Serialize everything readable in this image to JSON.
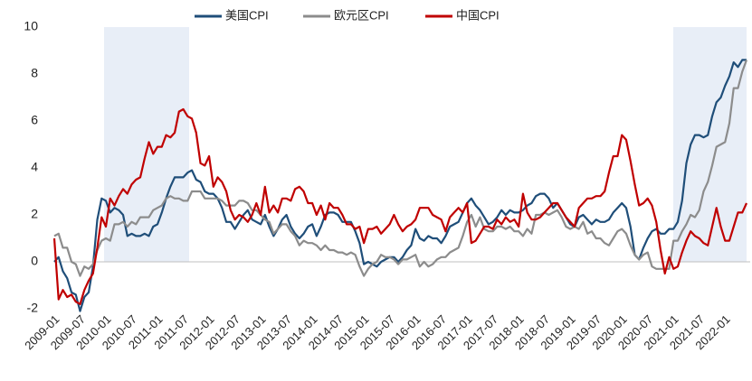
{
  "chart_data": {
    "type": "line",
    "categories": [
      "2009-01",
      null,
      null,
      null,
      null,
      null,
      "2009-07",
      null,
      null,
      null,
      null,
      null,
      "2010-01",
      null,
      null,
      null,
      null,
      null,
      "2010-07",
      null,
      null,
      null,
      null,
      null,
      "2011-01",
      null,
      null,
      null,
      null,
      null,
      "2011-07",
      null,
      null,
      null,
      null,
      null,
      "2012-01",
      null,
      null,
      null,
      null,
      null,
      "2012-07",
      null,
      null,
      null,
      null,
      null,
      "2013-01",
      null,
      null,
      null,
      null,
      null,
      "2013-07",
      null,
      null,
      null,
      null,
      null,
      "2014-01",
      null,
      null,
      null,
      null,
      null,
      "2014-07",
      null,
      null,
      null,
      null,
      null,
      "2015-01",
      null,
      null,
      null,
      null,
      null,
      "2015-07",
      null,
      null,
      null,
      null,
      null,
      "2016-01",
      null,
      null,
      null,
      null,
      null,
      "2016-07",
      null,
      null,
      null,
      null,
      null,
      "2017-01",
      null,
      null,
      null,
      null,
      null,
      "2017-07",
      null,
      null,
      null,
      null,
      null,
      "2018-01",
      null,
      null,
      null,
      null,
      null,
      "2018-07",
      null,
      null,
      null,
      null,
      null,
      "2019-01",
      null,
      null,
      null,
      null,
      null,
      "2019-07",
      null,
      null,
      null,
      null,
      null,
      "2020-01",
      null,
      null,
      null,
      null,
      null,
      "2020-07",
      null,
      null,
      null,
      null,
      null,
      "2021-01",
      null,
      null,
      null,
      null,
      null,
      "2021-07",
      null,
      null,
      null,
      null,
      null,
      "2022-01",
      null,
      null,
      null,
      null,
      null
    ],
    "series": [
      {
        "name": "美国CPI",
        "color": "#1f4e79",
        "values": [
          0.0,
          0.2,
          -0.4,
          -0.7,
          -1.3,
          -1.4,
          -2.1,
          -1.5,
          -1.3,
          -0.2,
          1.8,
          2.7,
          2.6,
          2.1,
          2.3,
          2.2,
          2.0,
          1.1,
          1.2,
          1.1,
          1.1,
          1.2,
          1.1,
          1.5,
          1.6,
          2.1,
          2.7,
          3.2,
          3.6,
          3.6,
          3.6,
          3.8,
          3.9,
          3.5,
          3.4,
          3.0,
          2.9,
          2.9,
          2.7,
          2.3,
          1.7,
          1.7,
          1.4,
          1.7,
          2.0,
          2.2,
          1.8,
          1.7,
          1.6,
          2.0,
          1.5,
          1.1,
          1.4,
          1.8,
          2.0,
          1.5,
          1.2,
          1.0,
          1.2,
          1.5,
          1.6,
          1.1,
          1.5,
          2.0,
          2.1,
          2.1,
          2.0,
          1.7,
          1.7,
          1.7,
          1.3,
          0.8,
          -0.1,
          0.0,
          -0.1,
          -0.2,
          0.0,
          0.1,
          0.2,
          0.2,
          0.0,
          0.2,
          0.5,
          0.7,
          1.4,
          1.0,
          0.9,
          1.1,
          1.0,
          1.0,
          0.8,
          1.1,
          1.5,
          1.6,
          1.7,
          2.1,
          2.5,
          2.7,
          2.4,
          2.2,
          1.9,
          1.6,
          1.7,
          1.9,
          2.2,
          2.0,
          2.2,
          2.1,
          2.1,
          2.2,
          2.4,
          2.5,
          2.8,
          2.9,
          2.9,
          2.7,
          2.3,
          2.5,
          2.2,
          1.9,
          1.6,
          1.5,
          1.9,
          2.0,
          1.8,
          1.6,
          1.8,
          1.7,
          1.7,
          1.8,
          2.1,
          2.3,
          2.5,
          2.3,
          1.5,
          0.3,
          0.1,
          0.6,
          1.0,
          1.3,
          1.4,
          1.2,
          1.2,
          1.4,
          1.4,
          1.7,
          2.6,
          4.2,
          5.0,
          5.4,
          5.4,
          5.3,
          5.4,
          6.2,
          6.8,
          7.0,
          7.5,
          7.9,
          8.5,
          8.3,
          8.6,
          8.6
        ]
      },
      {
        "name": "欧元区CPI",
        "color": "#8c8c8c",
        "values": [
          1.1,
          1.2,
          0.6,
          0.6,
          0.0,
          -0.1,
          -0.6,
          -0.2,
          -0.3,
          -0.1,
          0.5,
          0.9,
          1.0,
          0.9,
          1.6,
          1.6,
          1.7,
          1.5,
          1.7,
          1.6,
          1.9,
          1.9,
          1.9,
          2.2,
          2.3,
          2.4,
          2.7,
          2.8,
          2.7,
          2.7,
          2.6,
          2.6,
          3.0,
          3.0,
          3.0,
          2.7,
          2.7,
          2.7,
          2.7,
          2.6,
          2.4,
          2.4,
          2.4,
          2.6,
          2.6,
          2.5,
          2.2,
          2.2,
          2.0,
          1.8,
          1.7,
          1.2,
          1.4,
          1.6,
          1.6,
          1.3,
          1.1,
          0.7,
          0.9,
          0.8,
          0.8,
          0.7,
          0.5,
          0.7,
          0.5,
          0.5,
          0.4,
          0.4,
          0.3,
          0.4,
          0.3,
          -0.2,
          -0.6,
          -0.3,
          -0.1,
          0.0,
          0.3,
          0.2,
          0.2,
          0.1,
          -0.1,
          0.1,
          0.1,
          0.2,
          0.3,
          -0.2,
          0.0,
          -0.2,
          -0.1,
          0.1,
          0.2,
          0.2,
          0.4,
          0.5,
          0.6,
          1.1,
          1.7,
          2.0,
          1.5,
          1.9,
          1.4,
          1.3,
          1.3,
          1.5,
          1.5,
          1.4,
          1.5,
          1.3,
          1.3,
          1.1,
          1.4,
          1.2,
          2.0,
          2.0,
          2.1,
          2.0,
          2.1,
          2.2,
          1.9,
          1.5,
          1.4,
          1.5,
          1.4,
          1.7,
          1.2,
          1.3,
          1.0,
          1.0,
          0.8,
          0.7,
          1.0,
          1.3,
          1.4,
          1.2,
          0.7,
          0.3,
          0.1,
          0.3,
          0.4,
          -0.2,
          -0.3,
          -0.3,
          -0.3,
          -0.3,
          0.9,
          0.9,
          1.3,
          1.6,
          2.0,
          1.9,
          2.2,
          3.0,
          3.4,
          4.1,
          4.9,
          5.0,
          5.1,
          5.9,
          7.4,
          7.4,
          8.1,
          8.6
        ]
      },
      {
        "name": "中国CPI",
        "color": "#c00000",
        "values": [
          1.0,
          -1.6,
          -1.2,
          -1.5,
          -1.4,
          -1.7,
          -1.8,
          -1.2,
          -0.8,
          -0.5,
          0.6,
          1.9,
          1.5,
          2.7,
          2.4,
          2.8,
          3.1,
          2.9,
          3.3,
          3.5,
          3.6,
          4.4,
          5.1,
          4.6,
          4.9,
          4.9,
          5.4,
          5.3,
          5.5,
          6.4,
          6.5,
          6.2,
          6.1,
          5.5,
          4.2,
          4.1,
          4.5,
          3.2,
          3.6,
          3.4,
          3.0,
          2.2,
          1.8,
          2.0,
          1.9,
          1.7,
          2.0,
          2.5,
          2.0,
          3.2,
          2.1,
          2.4,
          2.1,
          2.7,
          2.7,
          2.6,
          3.1,
          3.2,
          3.0,
          2.5,
          2.5,
          2.0,
          2.4,
          1.8,
          2.5,
          2.3,
          2.3,
          2.0,
          1.6,
          1.6,
          1.4,
          1.5,
          0.8,
          1.4,
          1.4,
          1.5,
          1.2,
          1.4,
          1.6,
          2.0,
          1.6,
          1.3,
          1.5,
          1.6,
          1.8,
          2.3,
          2.3,
          2.3,
          2.0,
          1.9,
          1.8,
          1.3,
          1.9,
          2.1,
          2.3,
          2.1,
          2.5,
          0.8,
          0.9,
          1.2,
          1.5,
          1.5,
          1.4,
          1.8,
          1.6,
          1.9,
          1.7,
          1.8,
          1.5,
          2.9,
          2.1,
          1.8,
          1.8,
          1.9,
          2.1,
          2.3,
          2.5,
          2.5,
          2.2,
          1.9,
          1.7,
          1.5,
          2.3,
          2.5,
          2.7,
          2.7,
          2.8,
          2.8,
          3.0,
          3.8,
          4.5,
          4.5,
          5.4,
          5.2,
          4.3,
          3.3,
          2.4,
          2.5,
          2.7,
          2.4,
          1.7,
          0.5,
          -0.5,
          0.2,
          -0.3,
          -0.2,
          0.4,
          0.9,
          1.3,
          1.1,
          1.0,
          0.8,
          0.7,
          1.5,
          2.3,
          1.5,
          0.9,
          0.9,
          1.5,
          2.1,
          2.1,
          2.5
        ]
      }
    ],
    "ylim": [
      -2,
      10
    ],
    "yticks": [
      -2,
      0,
      2,
      4,
      6,
      8,
      10
    ],
    "grid": false,
    "legend": "top"
  }
}
